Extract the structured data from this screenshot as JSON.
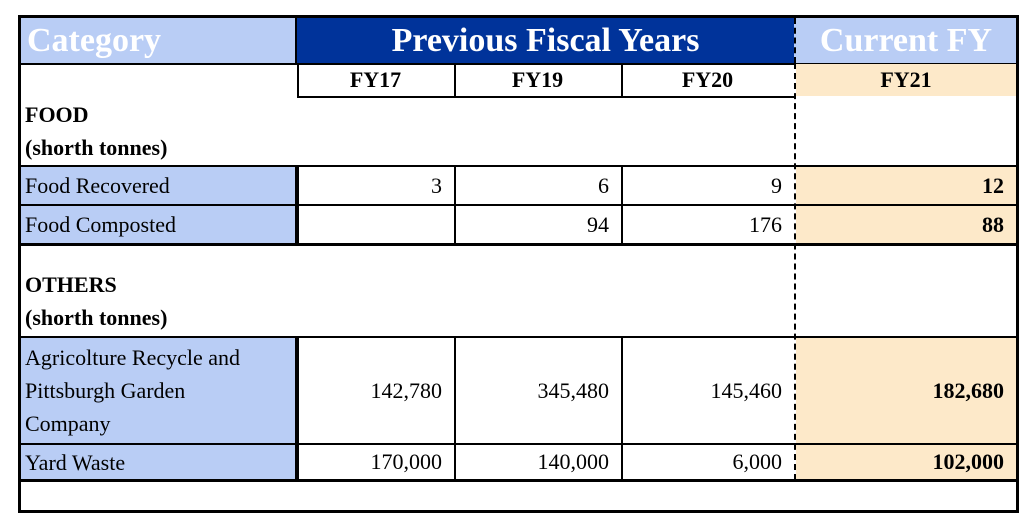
{
  "header": {
    "category": "Category",
    "previous": "Previous Fiscal Years",
    "current": "Current FY"
  },
  "years": [
    "FY17",
    "FY19",
    "FY20",
    "FY21"
  ],
  "sections": {
    "food": {
      "title": "FOOD",
      "unit": "(shorth tonnes)"
    },
    "others": {
      "title": "OTHERS",
      "unit": "(shorth tonnes)"
    }
  },
  "rows": {
    "food_recovered": {
      "label": "Food Recovered",
      "values": [
        "3",
        "6",
        "9",
        "12"
      ]
    },
    "food_composted": {
      "label": "Food Composted",
      "values": [
        "",
        "94",
        "176",
        "88"
      ]
    },
    "agri": {
      "label": [
        "Agricolture Recycle and",
        "Pittsburgh Garden",
        "Company"
      ],
      "values": [
        "142,780",
        "345,480",
        "145,460",
        "182,680"
      ]
    },
    "yard": {
      "label": "Yard Waste",
      "values": [
        "170,000",
        "140,000",
        "6,000",
        "102,000"
      ]
    }
  },
  "colors": {
    "header_blue": "#00339a",
    "light_blue": "#b9cdf5",
    "current_fy_fill": "#fde9c9"
  }
}
